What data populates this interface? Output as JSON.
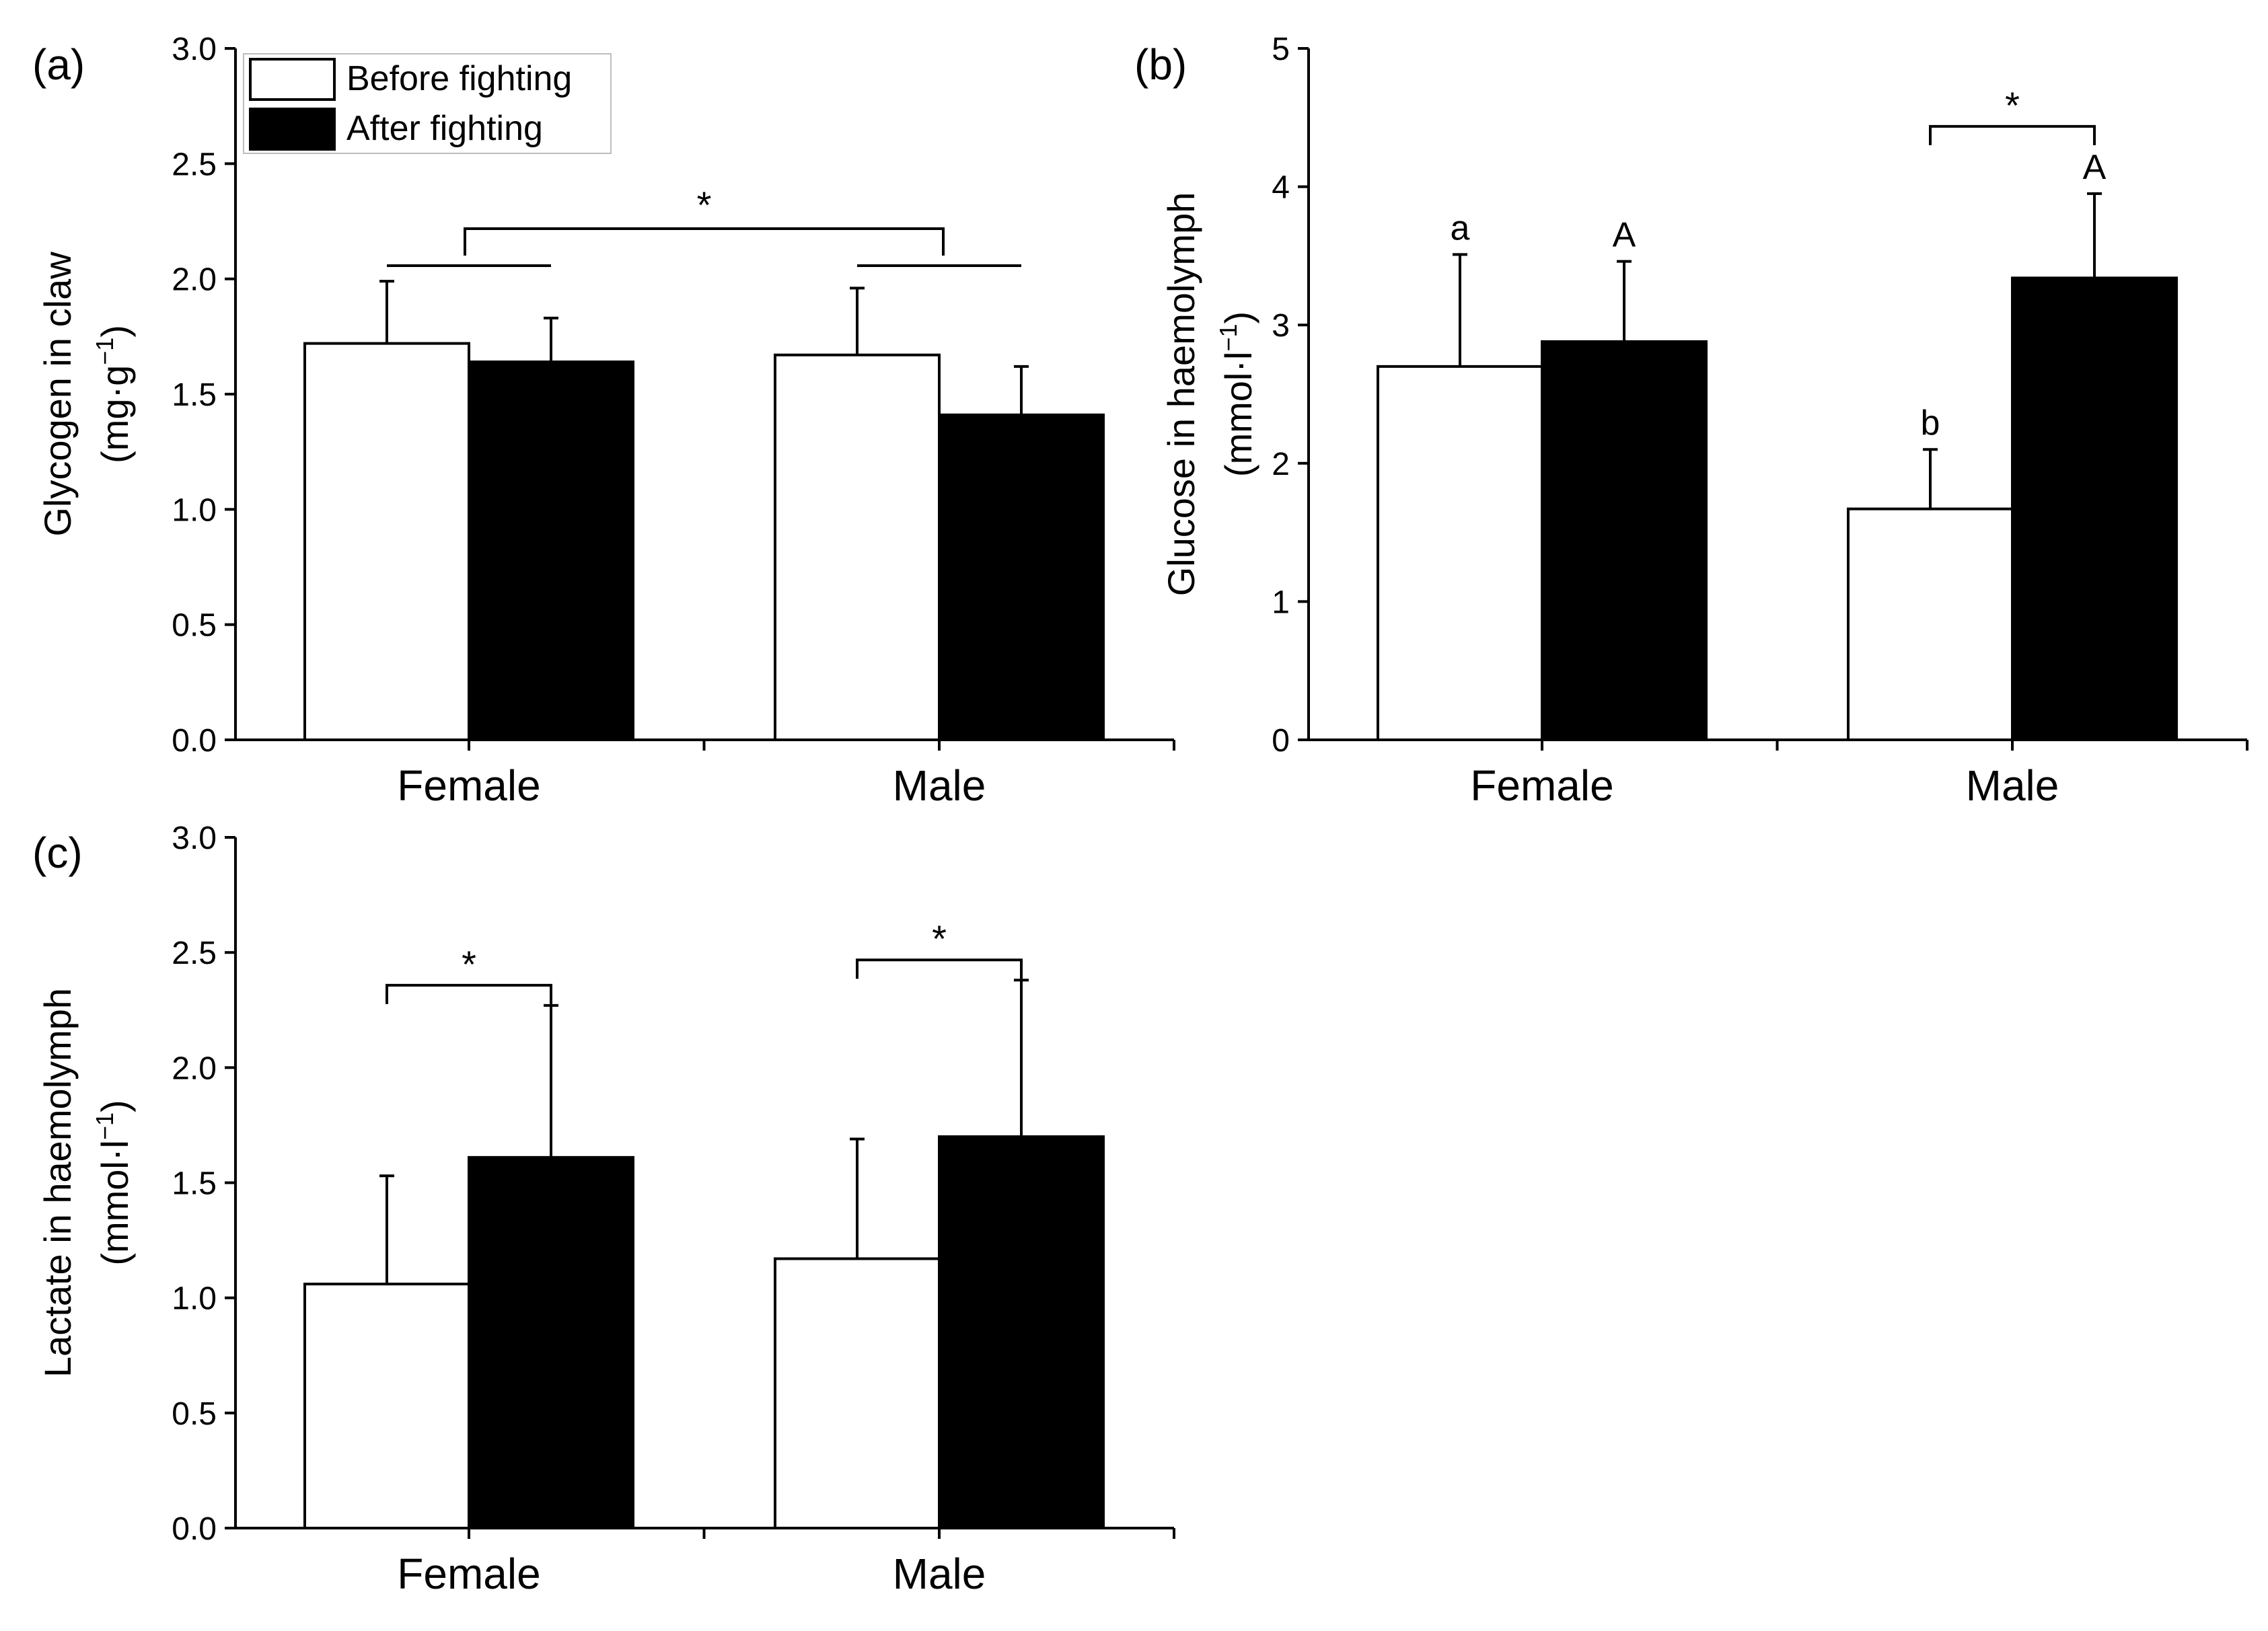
{
  "chart_data": [
    {
      "type": "bar",
      "panel": "(a)",
      "categories": [
        "Female",
        "Male"
      ],
      "ylabel": "Glycogen in claw",
      "yunit_base": "(mg·g",
      "yunit_exp": "−1",
      "yunit_end": ")",
      "ylim": [
        0,
        3.0
      ],
      "yticks": [
        "0.0",
        "0.5",
        "1.0",
        "1.5",
        "2.0",
        "2.5",
        "3.0"
      ],
      "series": [
        {
          "name": "Before fighting",
          "values": [
            1.72,
            1.67
          ],
          "errors": [
            0.27,
            0.29
          ],
          "fill": "#ffffff"
        },
        {
          "name": "After fighting",
          "values": [
            1.64,
            1.41
          ],
          "errors": [
            0.19,
            0.21
          ],
          "fill": "#000000"
        }
      ],
      "letters": [],
      "significance": [
        {
          "type": "group",
          "label": "*"
        }
      ],
      "legend": {
        "position": "top-left",
        "entries": [
          "Before fighting",
          "After fighting"
        ]
      }
    },
    {
      "type": "bar",
      "panel": "(b)",
      "categories": [
        "Female",
        "Male"
      ],
      "ylabel": "Glucose in haemolymph",
      "yunit_base": "(mmol·l",
      "yunit_exp": "−1",
      "yunit_end": ")",
      "ylim": [
        0,
        5
      ],
      "yticks": [
        "0",
        "1",
        "2",
        "3",
        "4",
        "5"
      ],
      "series": [
        {
          "name": "Before fighting",
          "values": [
            2.7,
            1.67
          ],
          "errors": [
            0.81,
            0.43
          ],
          "fill": "#ffffff"
        },
        {
          "name": "After fighting",
          "values": [
            2.88,
            3.34
          ],
          "errors": [
            0.58,
            0.61
          ],
          "fill": "#000000"
        }
      ],
      "letters": [
        [
          "a",
          "A"
        ],
        [
          "b",
          "A"
        ]
      ],
      "significance": [
        {
          "type": "pair",
          "category": 1,
          "label": "*"
        }
      ]
    },
    {
      "type": "bar",
      "panel": "(c)",
      "categories": [
        "Female",
        "Male"
      ],
      "ylabel": "Lactate in haemolymph",
      "yunit_base": "(mmol·l",
      "yunit_exp": "−1",
      "yunit_end": ")",
      "ylim": [
        0,
        3.0
      ],
      "yticks": [
        "0.0",
        "0.5",
        "1.0",
        "1.5",
        "2.0",
        "2.5",
        "3.0"
      ],
      "series": [
        {
          "name": "Before fighting",
          "values": [
            1.06,
            1.17
          ],
          "errors": [
            0.47,
            0.52
          ],
          "fill": "#ffffff"
        },
        {
          "name": "After fighting",
          "values": [
            1.61,
            1.7
          ],
          "errors": [
            0.66,
            0.68
          ],
          "fill": "#000000"
        }
      ],
      "letters": [],
      "significance": [
        {
          "type": "pair",
          "category": 0,
          "label": "*"
        },
        {
          "type": "pair",
          "category": 1,
          "label": "*"
        }
      ]
    }
  ]
}
